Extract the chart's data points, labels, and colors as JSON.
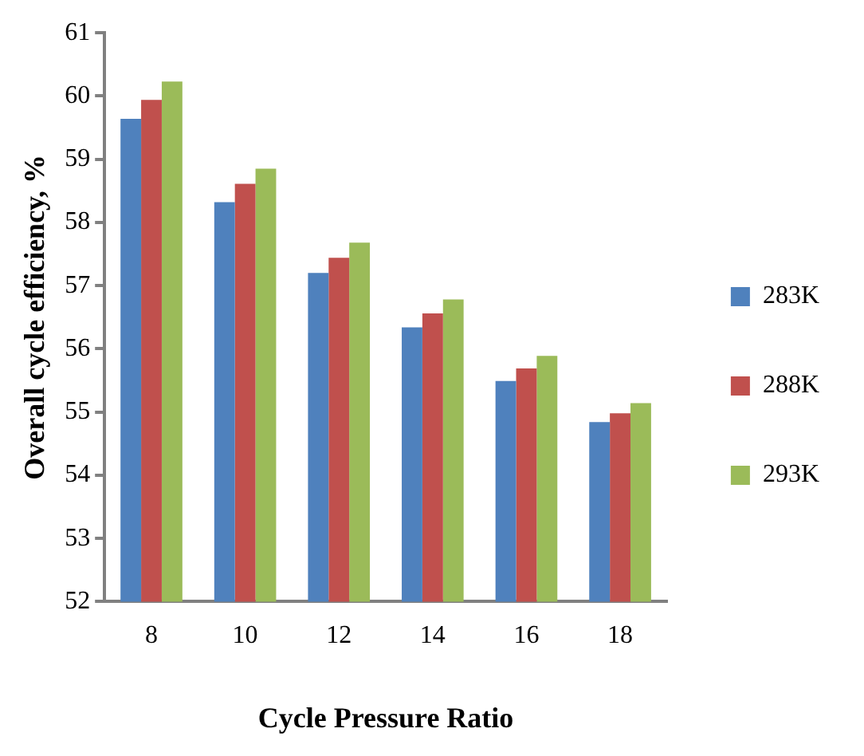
{
  "chart_data": {
    "type": "bar",
    "xlabel": "Cycle Pressure Ratio",
    "ylabel": "Overall cycle efficiency, %",
    "categories": [
      "8",
      "10",
      "12",
      "14",
      "16",
      "18"
    ],
    "series": [
      {
        "name": "283K",
        "color": "#4f81bd",
        "values": [
          59.64,
          58.32,
          57.2,
          56.34,
          55.49,
          54.84
        ]
      },
      {
        "name": "288K",
        "color": "#c0504d",
        "values": [
          59.94,
          58.61,
          57.44,
          56.56,
          55.69,
          54.98
        ]
      },
      {
        "name": "293K",
        "color": "#9bbb59",
        "values": [
          60.23,
          58.85,
          57.68,
          56.78,
          55.89,
          55.14
        ]
      }
    ],
    "ylim": [
      52,
      61
    ],
    "yticks": [
      52,
      53,
      54,
      55,
      56,
      57,
      58,
      59,
      60,
      61
    ],
    "grid": false,
    "legend": "right"
  }
}
